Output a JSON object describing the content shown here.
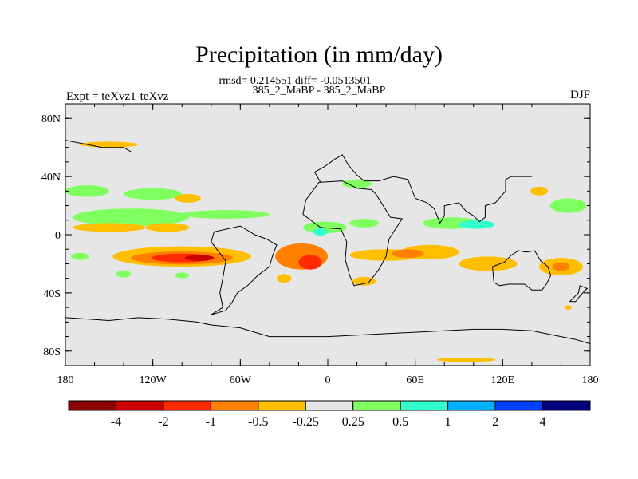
{
  "chart_data": {
    "type": "heatmap",
    "title": "Precipitation (in mm/day)",
    "stats": "rmsd= 0.214551 diff= -0.0513501",
    "subtitle": "385_2_MaBP - 385_2_MaBP",
    "left_label": "Expt = teXvz1-teXvz",
    "right_label": "DJF",
    "x_range": [
      -180,
      180
    ],
    "y_range": [
      -90,
      90
    ],
    "x_ticks": [
      {
        "value": -180,
        "label": "180"
      },
      {
        "value": -120,
        "label": "120W"
      },
      {
        "value": -60,
        "label": "60W"
      },
      {
        "value": 0,
        "label": "0"
      },
      {
        "value": 60,
        "label": "60E"
      },
      {
        "value": 120,
        "label": "120E"
      },
      {
        "value": 180,
        "label": "180"
      }
    ],
    "y_ticks": [
      {
        "value": 80,
        "label": "80N"
      },
      {
        "value": 40,
        "label": "40N"
      },
      {
        "value": 0,
        "label": "0"
      },
      {
        "value": -40,
        "label": "40S"
      },
      {
        "value": -80,
        "label": "80S"
      }
    ],
    "colorbar": {
      "colors": [
        "#8b0000",
        "#cc0000",
        "#ff2a00",
        "#ff7f00",
        "#ffbf00",
        "#e6e6e6",
        "#80ff60",
        "#33ffcc",
        "#00b0ff",
        "#0040ff",
        "#00007f"
      ],
      "labels": [
        "-4",
        "-2",
        "-1",
        "-0.5",
        "-0.25",
        "0.25",
        "0.5",
        "1",
        "2",
        "4"
      ]
    },
    "regions": [
      {
        "lon": -150,
        "lat": 62,
        "w": 40,
        "h": 4,
        "value": -0.3
      },
      {
        "lon": -165,
        "lat": 30,
        "w": 30,
        "h": 8,
        "value": 0.3
      },
      {
        "lon": -120,
        "lat": 28,
        "w": 40,
        "h": 8,
        "value": 0.3
      },
      {
        "lon": -145,
        "lat": 13,
        "w": 45,
        "h": 6,
        "value": 0.6
      },
      {
        "lon": -135,
        "lat": 12,
        "w": 80,
        "h": 12,
        "value": 0.3
      },
      {
        "lon": -150,
        "lat": 5,
        "w": 50,
        "h": 6,
        "value": -0.3
      },
      {
        "lon": -70,
        "lat": 14,
        "w": 60,
        "h": 6,
        "value": 0.3
      },
      {
        "lon": -96,
        "lat": 25,
        "w": 18,
        "h": 6,
        "value": -0.3
      },
      {
        "lon": -100,
        "lat": -15,
        "w": 95,
        "h": 14,
        "value": -0.3
      },
      {
        "lon": -100,
        "lat": -16,
        "w": 70,
        "h": 9,
        "value": -0.6
      },
      {
        "lon": -100,
        "lat": -16,
        "w": 42,
        "h": 6,
        "value": -1.2
      },
      {
        "lon": -88,
        "lat": -16,
        "w": 20,
        "h": 4,
        "value": -2.2
      },
      {
        "lon": -18,
        "lat": -15,
        "w": 36,
        "h": 18,
        "value": -0.6
      },
      {
        "lon": -12,
        "lat": -19,
        "w": 16,
        "h": 10,
        "value": -1.2
      },
      {
        "lon": -2,
        "lat": 5,
        "w": 30,
        "h": 8,
        "value": 0.3
      },
      {
        "lon": -5,
        "lat": 2,
        "w": 10,
        "h": 5,
        "value": 0.6
      },
      {
        "lon": 20,
        "lat": 35,
        "w": 20,
        "h": 6,
        "value": 0.3
      },
      {
        "lon": 25,
        "lat": 8,
        "w": 20,
        "h": 6,
        "value": 0.3
      },
      {
        "lon": 40,
        "lat": -14,
        "w": 50,
        "h": 8,
        "value": -0.3
      },
      {
        "lon": 70,
        "lat": -12,
        "w": 40,
        "h": 10,
        "value": -0.3
      },
      {
        "lon": 85,
        "lat": 8,
        "w": 40,
        "h": 8,
        "value": 0.3
      },
      {
        "lon": 102,
        "lat": 7,
        "w": 25,
        "h": 6,
        "value": 0.6
      },
      {
        "lon": 110,
        "lat": -20,
        "w": 40,
        "h": 10,
        "value": -0.3
      },
      {
        "lon": 160,
        "lat": -22,
        "w": 30,
        "h": 12,
        "value": -0.3
      },
      {
        "lon": 160,
        "lat": -22,
        "w": 12,
        "h": 6,
        "value": -0.6
      },
      {
        "lon": 165,
        "lat": 20,
        "w": 25,
        "h": 10,
        "value": 0.3
      },
      {
        "lon": 145,
        "lat": 30,
        "w": 12,
        "h": 6,
        "value": -0.3
      },
      {
        "lon": 25,
        "lat": -32,
        "w": 16,
        "h": 6,
        "value": -0.3
      },
      {
        "lon": -30,
        "lat": -30,
        "w": 10,
        "h": 6,
        "value": -0.3
      },
      {
        "lon": -170,
        "lat": -15,
        "w": 12,
        "h": 5,
        "value": 0.3
      },
      {
        "lon": -140,
        "lat": -27,
        "w": 10,
        "h": 5,
        "value": 0.3
      },
      {
        "lon": -100,
        "lat": -28,
        "w": 10,
        "h": 4,
        "value": 0.3
      },
      {
        "lon": 165,
        "lat": -50,
        "w": 5,
        "h": 3,
        "value": -0.3
      },
      {
        "lon": 95,
        "lat": -86,
        "w": 40,
        "h": 3,
        "value": -0.3
      },
      {
        "lon": -110,
        "lat": 5,
        "w": 30,
        "h": 6,
        "value": -0.3
      },
      {
        "lon": 55,
        "lat": -13,
        "w": 22,
        "h": 6,
        "value": -0.6
      }
    ]
  }
}
